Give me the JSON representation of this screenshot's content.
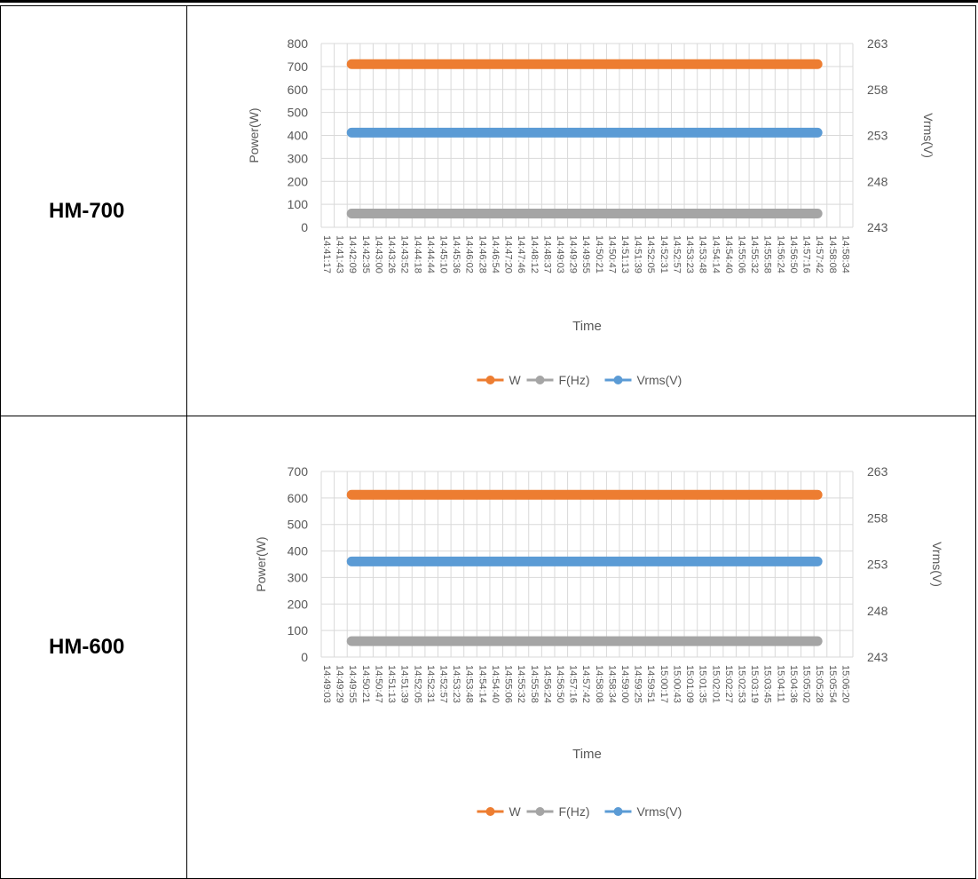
{
  "rows": [
    {
      "label": "HM-700"
    },
    {
      "label": "HM-600"
    }
  ],
  "colors": {
    "W": "#ED7D31",
    "F": "#A5A5A5",
    "Vrms": "#5B9BD5",
    "grid": "#D9D9D9",
    "text": "#595959"
  },
  "chart_data": [
    {
      "type": "line",
      "xlabel": "Time",
      "ylabel": "Power(W)",
      "y2label": "Vrms(V)",
      "ylim": [
        0,
        800
      ],
      "yticks": [
        0,
        100,
        200,
        300,
        400,
        500,
        600,
        700,
        800
      ],
      "y2lim": [
        243,
        263
      ],
      "y2ticks": [
        243,
        248,
        253,
        258,
        263
      ],
      "grid": true,
      "legend": "bottom",
      "x_tick_labels": [
        "14:41:17",
        "14:41:43",
        "14:42:09",
        "14:42:35",
        "14:43:00",
        "14:43:26",
        "14:43:52",
        "14:44:18",
        "14:44:44",
        "14:45:10",
        "14:45:36",
        "14:46:02",
        "14:46:28",
        "14:46:54",
        "14:47:20",
        "14:47:46",
        "14:48:12",
        "14:48:37",
        "14:49:03",
        "14:49:29",
        "14:49:55",
        "14:50:21",
        "14:50:47",
        "14:51:13",
        "14:51:39",
        "14:52:05",
        "14:52:31",
        "14:52:57",
        "14:53:23",
        "14:53:48",
        "14:54:14",
        "14:54:40",
        "14:55:06",
        "14:55:32",
        "14:55:58",
        "14:56:24",
        "14:56:50",
        "14:57:16",
        "14:57:42",
        "14:58:08",
        "14:58:34"
      ],
      "series": [
        {
          "name": "W",
          "axis": "left",
          "value": 710,
          "x_range": [
            "14:42:09",
            "14:57:42"
          ]
        },
        {
          "name": "F(Hz)",
          "axis": "left",
          "value": 60,
          "x_range": [
            "14:42:09",
            "14:57:42"
          ]
        },
        {
          "name": "Vrms(V)",
          "axis": "right",
          "value": 253.3,
          "x_range": [
            "14:42:09",
            "14:57:42"
          ]
        }
      ]
    },
    {
      "type": "line",
      "xlabel": "Time",
      "ylabel": "Power(W)",
      "y2label": "Vrms(V)",
      "ylim": [
        0,
        700
      ],
      "yticks": [
        0,
        100,
        200,
        300,
        400,
        500,
        600,
        700
      ],
      "y2lim": [
        243,
        263
      ],
      "y2ticks": [
        243,
        248,
        253,
        258,
        263
      ],
      "grid": true,
      "legend": "bottom",
      "x_tick_labels": [
        "14:49:03",
        "14:49:29",
        "14:49:55",
        "14:50:21",
        "14:50:47",
        "14:51:13",
        "14:51:39",
        "14:52:05",
        "14:52:31",
        "14:52:57",
        "14:53:23",
        "14:53:48",
        "14:54:14",
        "14:54:40",
        "14:55:06",
        "14:55:32",
        "14:55:58",
        "14:56:24",
        "14:56:50",
        "14:57:16",
        "14:57:42",
        "14:58:08",
        "14:58:34",
        "14:59:00",
        "14:59:25",
        "14:59:51",
        "15:00:17",
        "15:00:43",
        "15:01:09",
        "15:01:35",
        "15:02:01",
        "15:02:27",
        "15:02:53",
        "15:03:19",
        "15:03:45",
        "15:04:11",
        "15:04:36",
        "15:05:02",
        "15:05:28",
        "15:05:54",
        "15:06:20"
      ],
      "series": [
        {
          "name": "W",
          "axis": "left",
          "value": 612,
          "x_range": [
            "14:49:55",
            "15:05:28"
          ]
        },
        {
          "name": "F(Hz)",
          "axis": "left",
          "value": 60,
          "x_range": [
            "14:49:55",
            "15:05:28"
          ]
        },
        {
          "name": "Vrms(V)",
          "axis": "right",
          "value": 253.3,
          "x_range": [
            "14:49:55",
            "15:05:28"
          ]
        }
      ]
    }
  ]
}
